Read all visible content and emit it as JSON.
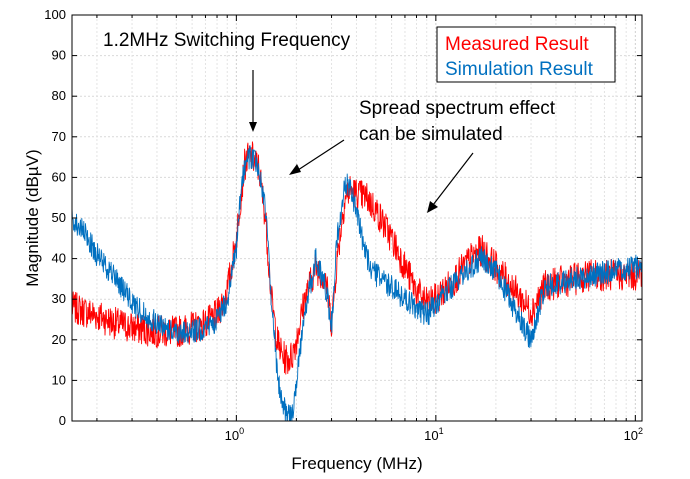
{
  "chart_data": {
    "type": "line",
    "title": "",
    "xlabel": "Frequency (MHz)",
    "ylabel": "Magnitude (dBµV)",
    "xscale": "log",
    "xlim": [
      0.15,
      108
    ],
    "ylim": [
      0,
      100
    ],
    "yticks": [
      0,
      10,
      20,
      30,
      40,
      50,
      60,
      70,
      80,
      90,
      100
    ],
    "xticks": [
      {
        "value": 1,
        "base": "10",
        "exp": "0"
      },
      {
        "value": 10,
        "base": "10",
        "exp": "1"
      },
      {
        "value": 100,
        "base": "10",
        "exp": "2"
      }
    ],
    "grid": true,
    "legend": {
      "position": "top-right",
      "entries": [
        {
          "label": "Measured Result",
          "color": "#ff0000"
        },
        {
          "label": "Simulation Result",
          "color": "#0070c0"
        }
      ]
    },
    "annotations": [
      {
        "lines": [
          "1.2MHz Switching Frequency"
        ],
        "arrow_to": {
          "x": 1.2,
          "y": 71
        }
      },
      {
        "lines": [
          "Spread spectrum effect",
          "can be simulated"
        ],
        "arrow_to": [
          {
            "x": 1.4,
            "y": 61
          },
          {
            "x": 9.5,
            "y": 51
          }
        ]
      }
    ],
    "series": [
      {
        "name": "Measured Result",
        "color": "#ff0000",
        "noise": 4,
        "x": [
          0.15,
          0.2,
          0.25,
          0.3,
          0.4,
          0.5,
          0.6,
          0.7,
          0.8,
          0.9,
          1.0,
          1.05,
          1.1,
          1.15,
          1.2,
          1.3,
          1.4,
          1.5,
          1.6,
          1.7,
          1.8,
          1.9,
          2.0,
          2.2,
          2.5,
          2.8,
          3.0,
          3.2,
          3.5,
          3.7,
          4.0,
          4.5,
          5.0,
          6.0,
          7.0,
          8.0,
          9.0,
          10.0,
          12.0,
          15.0,
          17.0,
          20.0,
          25.0,
          30.0,
          35.0,
          40.0,
          50.0,
          60.0,
          80.0,
          100.0,
          108.0
        ],
        "y": [
          28,
          26,
          24,
          23,
          22,
          22,
          23,
          24,
          26,
          32,
          45,
          55,
          63,
          65,
          65,
          62,
          50,
          30,
          20,
          16,
          15,
          16,
          20,
          30,
          38,
          35,
          24,
          40,
          55,
          57,
          56,
          55,
          52,
          45,
          38,
          32,
          29,
          30,
          34,
          40,
          42,
          38,
          32,
          27,
          33,
          34,
          35,
          36,
          36,
          36,
          37
        ]
      },
      {
        "name": "Simulation Result",
        "color": "#0070c0",
        "noise": 3,
        "x": [
          0.15,
          0.18,
          0.2,
          0.25,
          0.3,
          0.4,
          0.5,
          0.6,
          0.7,
          0.8,
          0.9,
          1.0,
          1.05,
          1.1,
          1.15,
          1.2,
          1.3,
          1.4,
          1.5,
          1.6,
          1.7,
          1.8,
          1.9,
          2.0,
          2.2,
          2.5,
          2.8,
          3.0,
          3.2,
          3.5,
          3.7,
          4.0,
          4.5,
          5.0,
          6.0,
          7.0,
          8.0,
          9.0,
          10.0,
          12.0,
          15.0,
          17.0,
          20.0,
          25.0,
          30.0,
          35.0,
          40.0,
          50.0,
          60.0,
          80.0,
          100.0,
          108.0
        ],
        "y": [
          50,
          45,
          41,
          35,
          29,
          24,
          22,
          22,
          23,
          25,
          30,
          42,
          55,
          63,
          65,
          65,
          62,
          52,
          30,
          12,
          5,
          1,
          1,
          10,
          27,
          40,
          33,
          24,
          45,
          58,
          58,
          52,
          40,
          36,
          33,
          30,
          28,
          26,
          29,
          33,
          38,
          40,
          37,
          27,
          20,
          33,
          34,
          35,
          36,
          37,
          38,
          38
        ]
      }
    ]
  }
}
